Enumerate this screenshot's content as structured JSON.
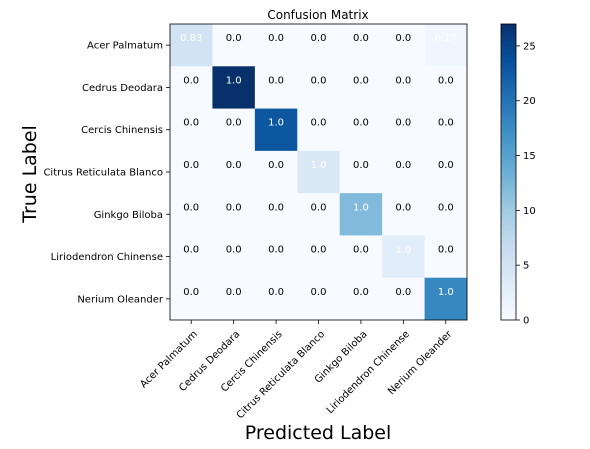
{
  "chart_data": {
    "type": "heatmap",
    "title": "Confusion Matrix",
    "xlabel": "Predicted Label",
    "ylabel": "True Label",
    "x_categories": [
      "Acer Palmatum",
      "Cedrus Deodara",
      "Cercis Chinensis",
      "Citrus Reticulata Blanco",
      "Ginkgo Biloba",
      "Liriodendron Chinense",
      "Nerium Oleander"
    ],
    "y_categories": [
      "Acer Palmatum",
      "Cedrus Deodara",
      "Cercis Chinensis",
      "Citrus Reticulata Blanco",
      "Ginkgo Biloba",
      "Liriodendron Chinense",
      "Nerium Oleander"
    ],
    "cell_labels": [
      [
        "0.83",
        "0.0",
        "0.0",
        "0.0",
        "0.0",
        "0.0",
        "0.17"
      ],
      [
        "0.0",
        "1.0",
        "0.0",
        "0.0",
        "0.0",
        "0.0",
        "0.0"
      ],
      [
        "0.0",
        "0.0",
        "1.0",
        "0.0",
        "0.0",
        "0.0",
        "0.0"
      ],
      [
        "0.0",
        "0.0",
        "0.0",
        "1.0",
        "0.0",
        "0.0",
        "0.0"
      ],
      [
        "0.0",
        "0.0",
        "0.0",
        "0.0",
        "1.0",
        "0.0",
        "0.0"
      ],
      [
        "0.0",
        "0.0",
        "0.0",
        "0.0",
        "0.0",
        "1.0",
        "0.0"
      ],
      [
        "0.0",
        "0.0",
        "0.0",
        "0.0",
        "0.0",
        "0.0",
        "1.0"
      ]
    ],
    "counts": [
      [
        5,
        0,
        0,
        0,
        0,
        0,
        1
      ],
      [
        0,
        27,
        0,
        0,
        0,
        0,
        0
      ],
      [
        0,
        0,
        23,
        0,
        0,
        0,
        0
      ],
      [
        0,
        0,
        0,
        4,
        0,
        0,
        0
      ],
      [
        0,
        0,
        0,
        0,
        12,
        0,
        0
      ],
      [
        0,
        0,
        0,
        0,
        0,
        3,
        0
      ],
      [
        0,
        0,
        0,
        0,
        0,
        0,
        18
      ]
    ],
    "colorbar": {
      "min": 0,
      "max": 27,
      "ticks": [
        0,
        5,
        10,
        15,
        20,
        25
      ]
    },
    "colormap": "Blues",
    "colors": {
      "low": "#f7fbff",
      "high": "#08306b"
    }
  }
}
